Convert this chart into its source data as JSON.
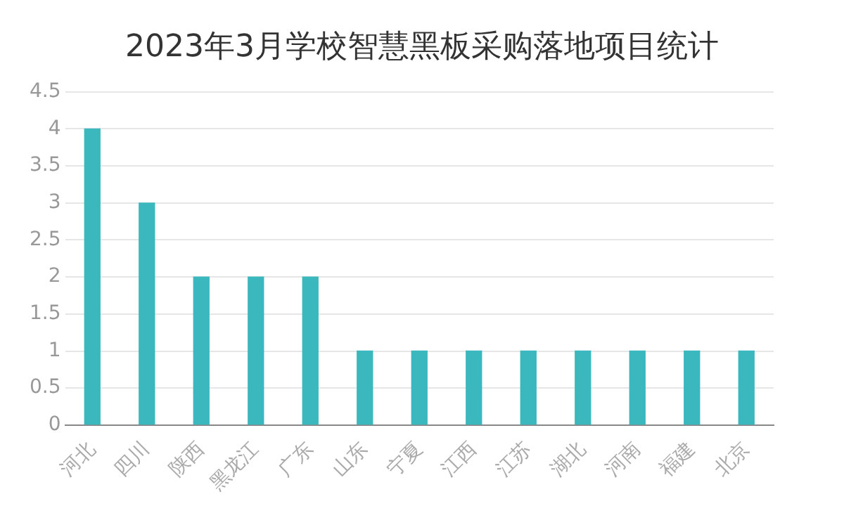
{
  "chart_data": {
    "type": "bar",
    "title": "2023年3月学校智慧黑板采购落地项目统计",
    "categories": [
      "河北",
      "四川",
      "陕西",
      "黑龙江",
      "广东",
      "山东",
      "宁夏",
      "江西",
      "江苏",
      "湖北",
      "河南",
      "福建",
      "北京"
    ],
    "values": [
      4,
      3,
      2,
      2,
      2,
      1,
      1,
      1,
      1,
      1,
      1,
      1,
      1
    ],
    "color": "#3bb8bd",
    "ylim": [
      0,
      4.5
    ],
    "yticks": [
      0,
      0.5,
      1,
      1.5,
      2,
      2.5,
      3,
      3.5,
      4,
      4.5
    ],
    "grid": "y"
  }
}
